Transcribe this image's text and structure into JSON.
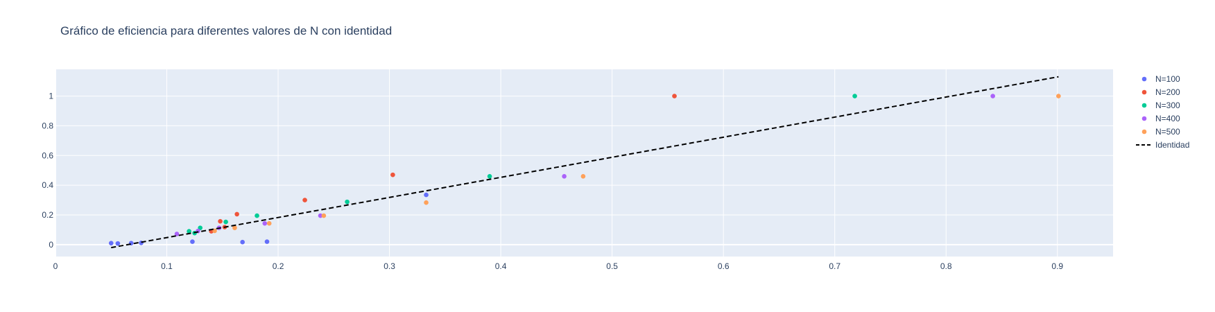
{
  "chart_data": {
    "type": "scatter",
    "title": "Gráfico de eficiencia para diferentes valores de N con identidad",
    "xlabel": "",
    "ylabel": "",
    "xlim": [
      0,
      0.95
    ],
    "ylim": [
      -0.08,
      1.18
    ],
    "x_ticks": [
      0,
      0.1,
      0.2,
      0.3,
      0.4,
      0.5,
      0.6,
      0.7,
      0.8,
      0.9
    ],
    "y_ticks": [
      0,
      0.2,
      0.4,
      0.6,
      0.8,
      1
    ],
    "grid": true,
    "background": "#e5ecf6",
    "legend_position": "right",
    "series": [
      {
        "name": "N=100",
        "color": "#636efa",
        "points": [
          [
            0.05,
            0.01
          ],
          [
            0.056,
            0.008
          ],
          [
            0.068,
            0.01
          ],
          [
            0.077,
            0.012
          ],
          [
            0.123,
            0.02
          ],
          [
            0.168,
            0.017
          ],
          [
            0.19,
            0.02
          ],
          [
            0.333,
            0.335
          ]
        ]
      },
      {
        "name": "N=200",
        "color": "#ef553b",
        "points": [
          [
            0.14,
            0.09
          ],
          [
            0.148,
            0.157
          ],
          [
            0.152,
            0.118
          ],
          [
            0.163,
            0.205
          ],
          [
            0.224,
            0.3
          ],
          [
            0.303,
            0.47
          ],
          [
            0.556,
            1.0
          ]
        ]
      },
      {
        "name": "N=300",
        "color": "#00cc96",
        "points": [
          [
            0.12,
            0.09
          ],
          [
            0.125,
            0.078
          ],
          [
            0.13,
            0.113
          ],
          [
            0.153,
            0.153
          ],
          [
            0.181,
            0.195
          ],
          [
            0.262,
            0.288
          ],
          [
            0.39,
            0.46
          ],
          [
            0.718,
            1.0
          ]
        ]
      },
      {
        "name": "N=400",
        "color": "#ab63fa",
        "points": [
          [
            0.109,
            0.072
          ],
          [
            0.128,
            0.092
          ],
          [
            0.147,
            0.113
          ],
          [
            0.188,
            0.143
          ],
          [
            0.238,
            0.195
          ],
          [
            0.457,
            0.46
          ],
          [
            0.842,
            1.0
          ]
        ]
      },
      {
        "name": "N=500",
        "color": "#ffa15a",
        "points": [
          [
            0.143,
            0.093
          ],
          [
            0.161,
            0.113
          ],
          [
            0.192,
            0.143
          ],
          [
            0.241,
            0.195
          ],
          [
            0.333,
            0.283
          ],
          [
            0.474,
            0.46
          ],
          [
            0.901,
            1.0
          ]
        ]
      }
    ],
    "identity_line": {
      "name": "Identidad",
      "color": "#000000",
      "dash": "dashed",
      "points": [
        [
          0.05,
          -0.02
        ],
        [
          0.901,
          1.13
        ]
      ]
    }
  }
}
